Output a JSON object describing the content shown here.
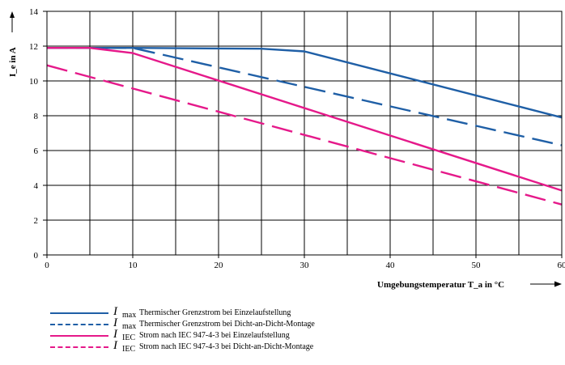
{
  "chart_data": {
    "type": "line",
    "ylabel": "I_e in A",
    "xlabel": "Umgebungstemperatur T_a in °C",
    "xlim": [
      0,
      60
    ],
    "ylim": [
      0,
      14
    ],
    "x_ticks": [
      0,
      10,
      20,
      30,
      40,
      50,
      60
    ],
    "y_ticks": [
      0,
      2,
      4,
      6,
      8,
      10,
      12,
      14
    ],
    "grid": true,
    "legend_position": "bottom",
    "series": [
      {
        "symbol": "I",
        "subscript": "max",
        "name": "Thermischer Grenzstrom bei Einzelaufstellung",
        "color": "#1f5fa6",
        "dash": "solid",
        "x": [
          0,
          10,
          25,
          30,
          60
        ],
        "y": [
          11.9,
          11.9,
          11.85,
          11.7,
          7.9
        ]
      },
      {
        "symbol": "I",
        "subscript": "max",
        "name": "Thermischer Grenzstrom bei Dicht-an-Dicht-Montage",
        "color": "#1f5fa6",
        "dash": "dashed",
        "x": [
          0,
          10,
          60
        ],
        "y": [
          11.9,
          11.9,
          6.3
        ]
      },
      {
        "symbol": "I",
        "subscript": "IEC",
        "name": "Strom nach IEC 947-4-3 bei Einzelaufstellung",
        "color": "#e5198a",
        "dash": "solid",
        "x": [
          0,
          5,
          10,
          60
        ],
        "y": [
          11.9,
          11.9,
          11.6,
          3.7
        ]
      },
      {
        "symbol": "I",
        "subscript": "IEC",
        "name": "Strom nach IEC 947-4-3 bei Dicht-an-Dicht-Montage",
        "color": "#e5198a",
        "dash": "dashed",
        "x": [
          0,
          60
        ],
        "y": [
          10.9,
          2.9
        ]
      }
    ]
  }
}
